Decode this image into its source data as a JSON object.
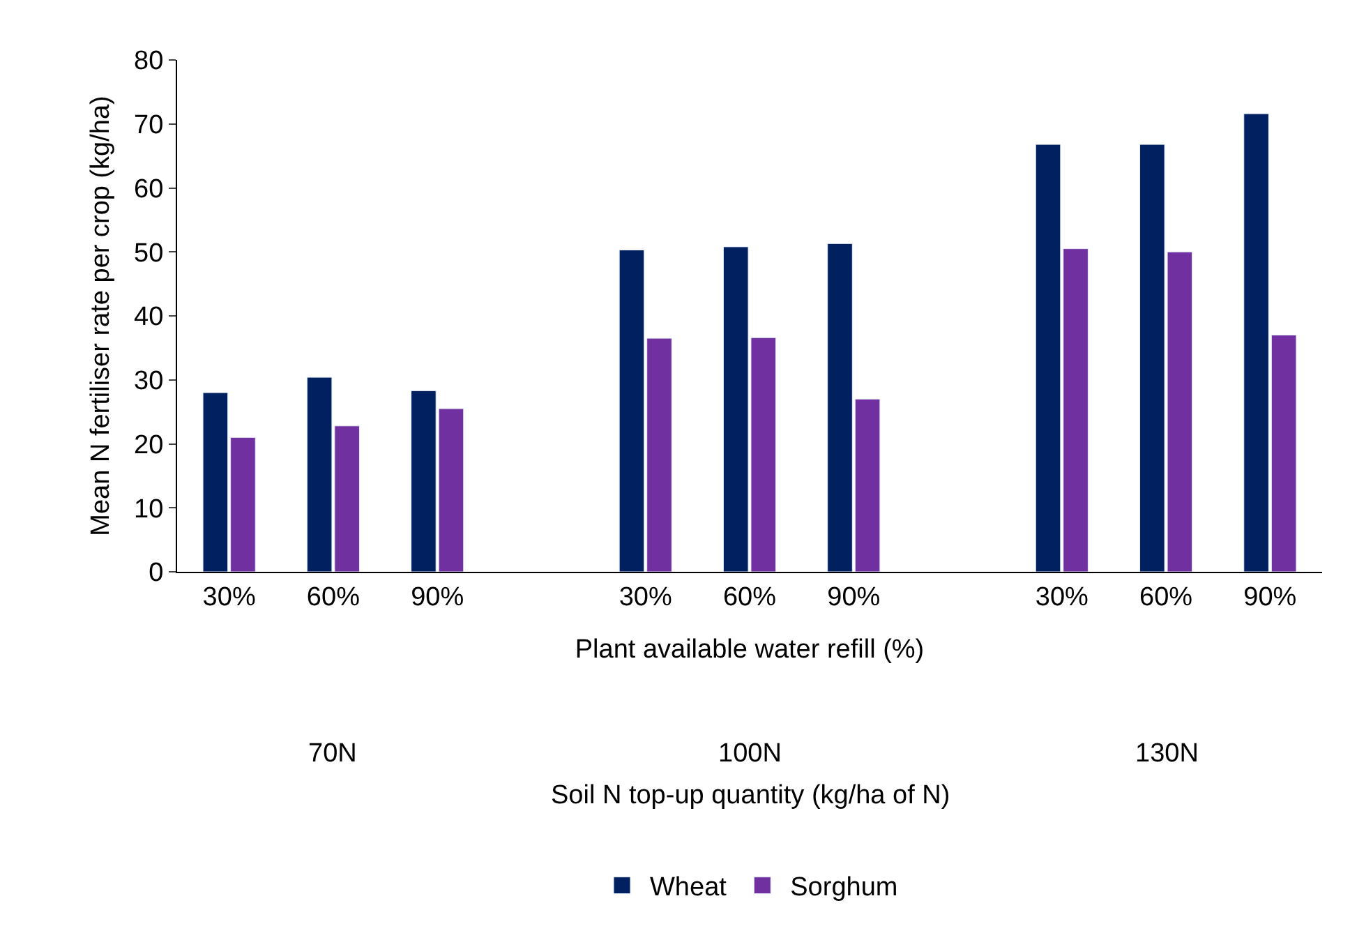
{
  "chart_data": {
    "type": "bar",
    "xlabel": "Plant available water refill (%)",
    "ylabel": "Mean N fertiliser rate per crop (kg/ha)",
    "categories": [
      "30%",
      "60%",
      "90%",
      null,
      "30%",
      "60%",
      "90%",
      null,
      "30%",
      "60%",
      "90%"
    ],
    "series": [
      {
        "name": "Wheat",
        "color": "#002060",
        "values": [
          28,
          30.4,
          28.3,
          null,
          50.3,
          50.8,
          51.3,
          null,
          66.8,
          66.8,
          71.6
        ]
      },
      {
        "name": "Sorghum",
        "color": "#7030a0",
        "values": [
          21,
          22.8,
          25.5,
          null,
          36.5,
          36.6,
          27,
          null,
          50.5,
          50,
          37
        ]
      }
    ],
    "annotations": [
      "70N",
      "100N",
      "130N",
      "Soil N top-up quantity (kg/ha of N)"
    ],
    "ylim": [
      0,
      80
    ],
    "yticks": [
      0,
      10,
      20,
      30,
      40,
      50,
      60,
      70,
      80
    ],
    "legend": "bottom"
  }
}
